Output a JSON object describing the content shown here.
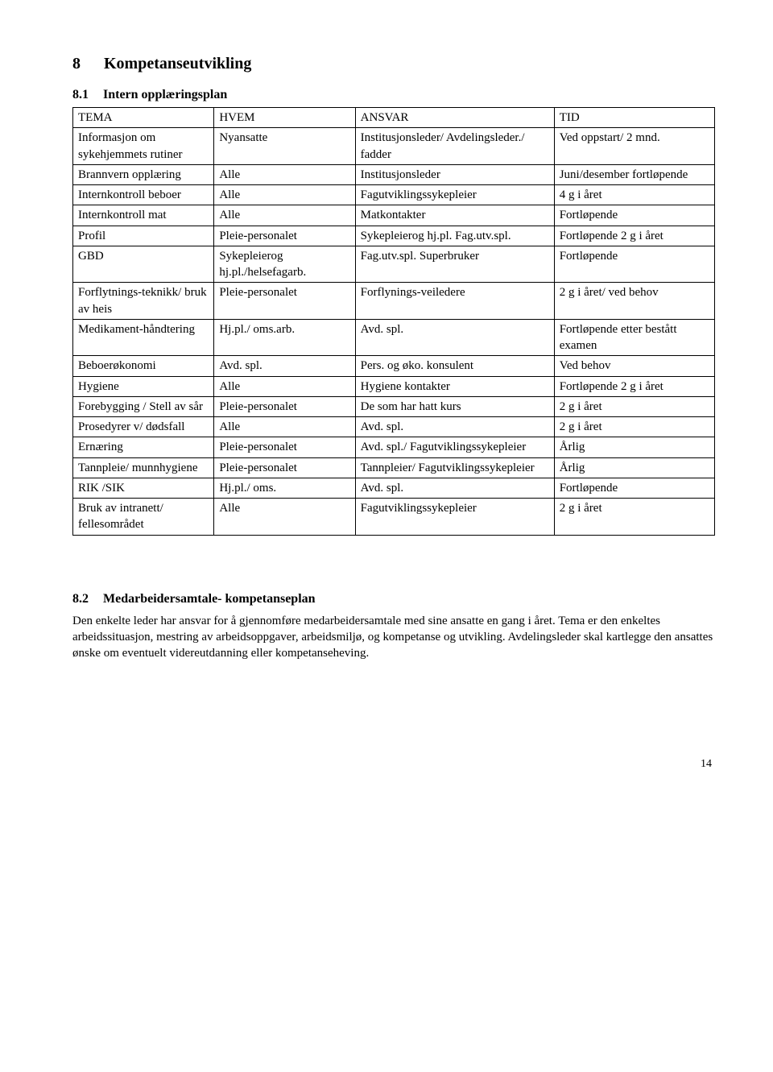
{
  "section8": {
    "number": "8",
    "title": "Kompetanseutvikling"
  },
  "section81": {
    "number": "8.1",
    "title": "Intern opplæringsplan"
  },
  "table": {
    "header": {
      "tema": "TEMA",
      "hvem": "HVEM",
      "ansvar": "ANSVAR",
      "tid": "TID"
    },
    "rows": [
      {
        "tema": "Informasjon om sykehjemmets rutiner",
        "hvem": "Nyansatte",
        "ansvar": "Institusjonsleder/ Avdelingsleder./ fadder",
        "tid": "Ved oppstart/ 2 mnd."
      },
      {
        "tema": "Brannvern opplæring",
        "hvem": "Alle",
        "ansvar": "Institusjonsleder",
        "tid": "Juni/desember fortløpende"
      },
      {
        "tema": "Internkontroll beboer",
        "hvem": "Alle",
        "ansvar": "Fagutviklingssykepleier",
        "tid": "4 g i året"
      },
      {
        "tema": "Internkontroll mat",
        "hvem": "Alle",
        "ansvar": "Matkontakter",
        "tid": "Fortløpende"
      },
      {
        "tema": "Profil",
        "hvem": "Pleie-personalet",
        "ansvar": "Sykepleierog hj.pl. Fag.utv.spl.",
        "tid": "Fortløpende 2 g i året"
      },
      {
        "tema": "GBD",
        "hvem": "Sykepleierog hj.pl./helsefagarb.",
        "ansvar": "Fag.utv.spl. Superbruker",
        "tid": "Fortløpende"
      },
      {
        "tema": "Forflytnings-teknikk/ bruk av heis",
        "hvem": "Pleie-personalet",
        "ansvar": "Forflynings-veiledere",
        "tid": "2 g i året/ ved behov"
      },
      {
        "tema": "Medikament-håndtering",
        "hvem": "Hj.pl./ oms.arb.",
        "ansvar": "Avd. spl.",
        "tid": "Fortløpende etter bestått examen"
      },
      {
        "tema": "Beboerøkonomi",
        "hvem": "Avd. spl.",
        "ansvar": "Pers. og øko. konsulent",
        "tid": "Ved behov"
      },
      {
        "tema": "Hygiene",
        "hvem": "Alle",
        "ansvar": "Hygiene kontakter",
        "tid": "Fortløpende 2 g i året"
      },
      {
        "tema": "Forebygging / Stell av sår",
        "hvem": "Pleie-personalet",
        "ansvar": "De som har hatt kurs",
        "tid": "2 g i året"
      },
      {
        "tema": "Prosedyrer v/ dødsfall",
        "hvem": "Alle",
        "ansvar": "Avd. spl.",
        "tid": "2 g i året"
      },
      {
        "tema": "Ernæring",
        "hvem": "Pleie-personalet",
        "ansvar": "Avd. spl./ Fagutviklingssykepleier",
        "tid": "Årlig"
      },
      {
        "tema": "Tannpleie/ munnhygiene",
        "hvem": "Pleie-personalet",
        "ansvar": "Tannpleier/ Fagutviklingssykepleier",
        "tid": "Årlig"
      },
      {
        "tema": "RIK /SIK",
        "hvem": "Hj.pl./ oms.",
        "ansvar": "Avd. spl.",
        "tid": "Fortløpende"
      },
      {
        "tema": "Bruk av intranett/ fellesområdet",
        "hvem": "Alle",
        "ansvar": "Fagutviklingssykepleier",
        "tid": "2 g i året"
      }
    ]
  },
  "section82": {
    "number": "8.2",
    "title": "Medarbeidersamtale- kompetanseplan",
    "body": "Den enkelte leder har ansvar for å gjennomføre medarbeidersamtale med sine ansatte en gang i året. Tema er den enkeltes arbeidssituasjon, mestring av arbeidsoppgaver, arbeidsmiljø, og kompetanse og utvikling. Avdelingsleder skal kartlegge den ansattes ønske om eventuelt videreutdanning eller kompetanseheving."
  },
  "page_number": "14"
}
